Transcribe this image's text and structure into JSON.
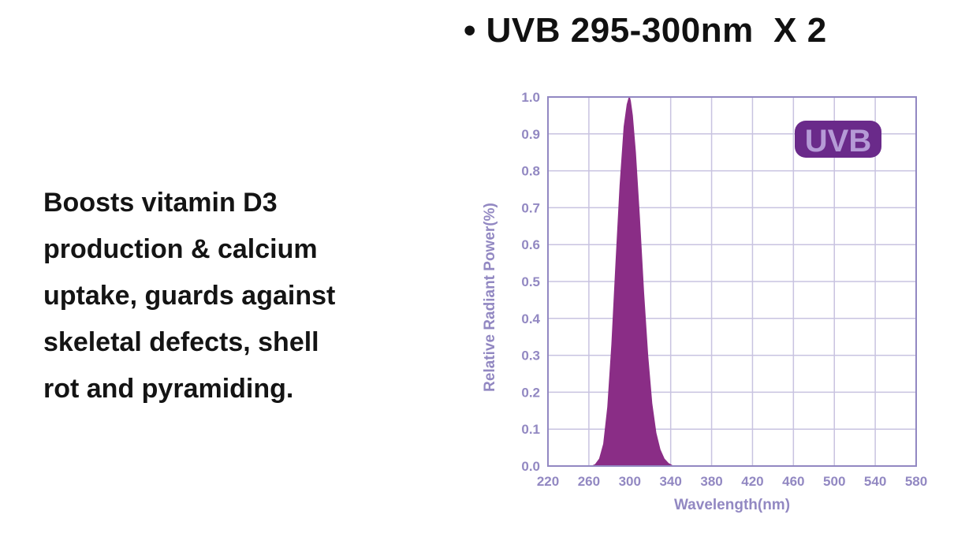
{
  "headline": "• UVB 295-300nm  X 2",
  "description": {
    "lines": [
      "Boosts vitamin D3",
      "production & calcium",
      "uptake, guards against",
      "skeletal defects, shell",
      "rot and pyramiding."
    ]
  },
  "badge": {
    "label": "UVB"
  },
  "colors": {
    "accent": "#8a2d86",
    "axis": "#9288c2",
    "grid": "#c8c3e0",
    "badge_fill": "#6a2a8a",
    "badge_text": "#b59ad6"
  },
  "chart_data": {
    "type": "area",
    "xlabel": "Wavelength(nm)",
    "ylabel": "Relative Radiant Power(%)",
    "xlim": [
      220,
      580
    ],
    "ylim": [
      0.0,
      1.0
    ],
    "x_ticks": [
      220,
      260,
      300,
      340,
      380,
      420,
      460,
      500,
      540,
      580
    ],
    "x_tick_labels": [
      "220",
      "260",
      "300",
      "340",
      "380",
      "420",
      "460",
      "500",
      "540",
      "580"
    ],
    "y_ticks": [
      0.0,
      0.1,
      0.2,
      0.3,
      0.4,
      0.5,
      0.6,
      0.7,
      0.8,
      0.9,
      1.0
    ],
    "y_tick_labels": [
      "0.0",
      "0.1",
      "0.2",
      "0.3",
      "0.4",
      "0.5",
      "0.6",
      "0.7",
      "0.8",
      "0.9",
      "1.0"
    ],
    "grid": true,
    "series": [
      {
        "x": [
          262,
          266,
          270,
          274,
          278,
          282,
          286,
          290,
          294,
          297,
          299,
          300,
          301,
          303,
          306,
          310,
          314,
          318,
          322,
          326,
          330,
          334,
          338,
          342,
          346
        ],
        "y": [
          0.0,
          0.005,
          0.02,
          0.06,
          0.16,
          0.33,
          0.55,
          0.76,
          0.92,
          0.98,
          1.0,
          1.0,
          0.99,
          0.95,
          0.85,
          0.67,
          0.47,
          0.3,
          0.17,
          0.09,
          0.045,
          0.02,
          0.008,
          0.002,
          0.0
        ]
      }
    ]
  }
}
